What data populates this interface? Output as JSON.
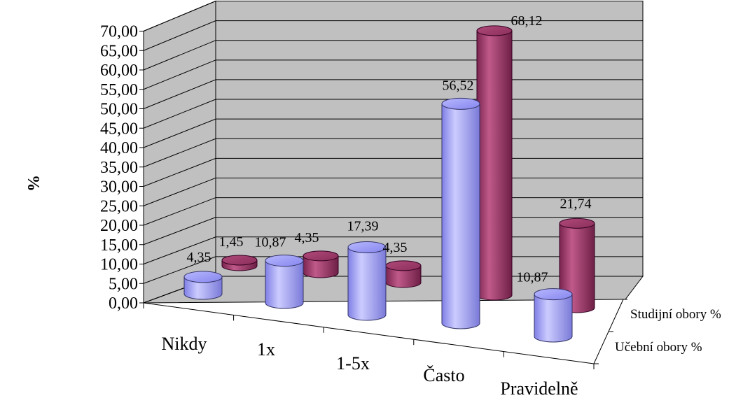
{
  "chart_data": {
    "type": "bar",
    "style": "3d-cylinder",
    "title": "",
    "xlabel": "",
    "ylabel": "%",
    "ylim": [
      0,
      70
    ],
    "ytick_step": 5,
    "yticks": [
      "0,00",
      "5,00",
      "10,00",
      "15,00",
      "20,00",
      "25,00",
      "30,00",
      "35,00",
      "40,00",
      "45,00",
      "50,00",
      "55,00",
      "60,00",
      "65,00",
      "70,00"
    ],
    "grid": true,
    "categories": [
      "Nikdy",
      "1x",
      "1-5x",
      "Často",
      "Pravidelně"
    ],
    "series": [
      {
        "name": "Učební obory %",
        "color": "#9999ff",
        "values": [
          4.35,
          10.87,
          17.39,
          56.52,
          10.87
        ],
        "labels": [
          "4,35",
          "10,87",
          "17,39",
          "56,52",
          "10,87"
        ]
      },
      {
        "name": "Studijní obory %",
        "color": "#993366",
        "values": [
          1.45,
          4.35,
          4.35,
          68.12,
          21.74
        ],
        "labels": [
          "1,45",
          "4,35",
          "4,35",
          "68,12",
          "21,74"
        ]
      }
    ],
    "depth_labels_position": "right"
  }
}
